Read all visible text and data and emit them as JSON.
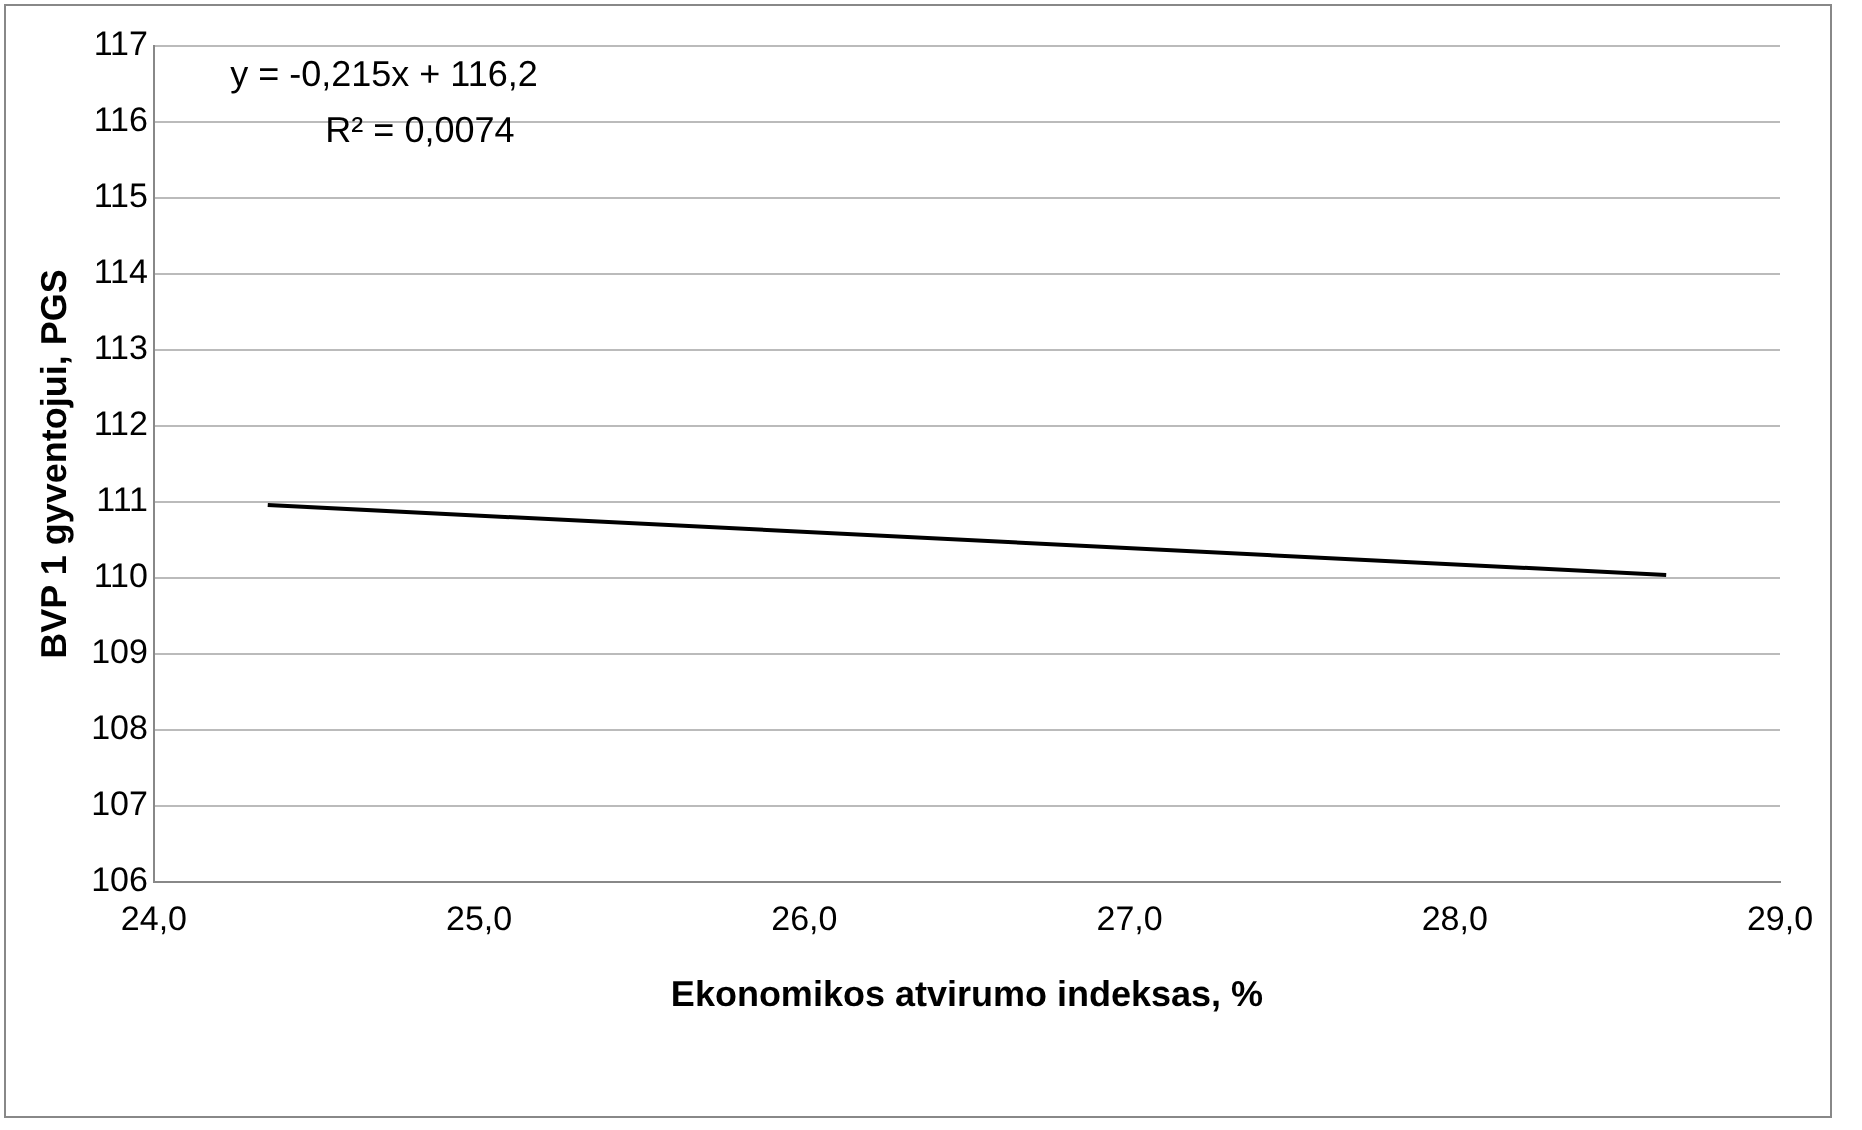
{
  "chart_data": {
    "type": "line",
    "xlabel": "Ekonomikos atvirumo indeksas, %",
    "ylabel": "BVP 1 gyventojui, PGS",
    "annotations": [
      "y = -0,215x + 116,2",
      "R² = 0,0074"
    ],
    "series": [
      {
        "color": "#000000",
        "x": [
          24.35,
          28.65
        ],
        "values": [
          110.96,
          110.04
        ]
      }
    ],
    "xlim": [
      24,
      29
    ],
    "xticks": [
      {
        "value": 24,
        "label": "24,0"
      },
      {
        "value": 25,
        "label": "25,0"
      },
      {
        "value": 26,
        "label": "26,0"
      },
      {
        "value": 27,
        "label": "27,0"
      },
      {
        "value": 28,
        "label": "28,0"
      },
      {
        "value": 29,
        "label": "29,0"
      }
    ],
    "ylim": [
      106,
      117
    ],
    "yticks": [
      106,
      107,
      108,
      109,
      110,
      111,
      112,
      113,
      114,
      115,
      116,
      117
    ],
    "grid": "y",
    "legend": false,
    "marker": "none",
    "line_style": "solid"
  }
}
